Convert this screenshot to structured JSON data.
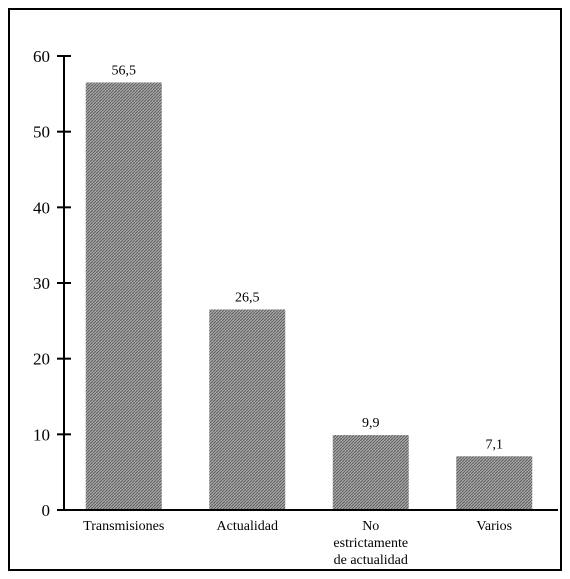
{
  "chart_data": {
    "type": "bar",
    "title": "",
    "xlabel": "",
    "ylabel": "",
    "categories": [
      [
        "Transmisiones"
      ],
      [
        "Actualidad"
      ],
      [
        "No",
        "estrictamente",
        "de actualidad"
      ],
      [
        "Varios"
      ]
    ],
    "values": [
      56.5,
      26.5,
      9.9,
      7.1
    ],
    "value_labels": [
      "56,5",
      "26,5",
      "9,9",
      "7,1"
    ],
    "ylim": [
      0,
      60
    ],
    "yticks": [
      0,
      10,
      20,
      30,
      40,
      50,
      60
    ],
    "ytick_labels": [
      "0",
      "10",
      "20",
      "30",
      "40",
      "50",
      "60"
    ],
    "grid": false,
    "legend": "none",
    "bar_color": "#9a9a9a",
    "bar_hatch_color": "#6a6a6a",
    "frame_color": "#000000"
  }
}
